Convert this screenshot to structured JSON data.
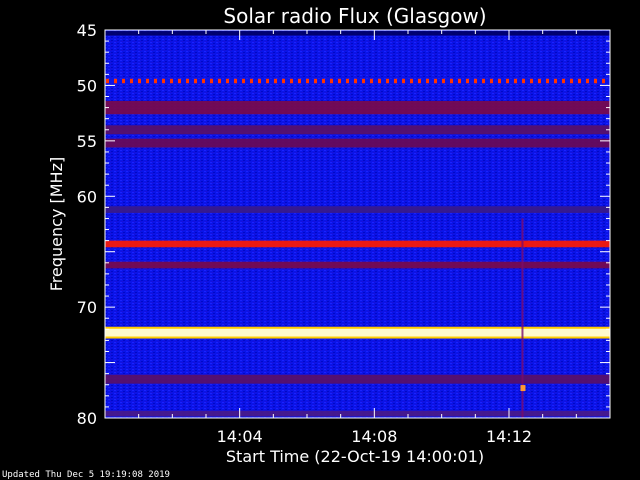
{
  "chart_data": {
    "type": "heatmap",
    "title": "Solar radio Flux (Glasgow)",
    "xlabel": "Start Time (22-Oct-19 14:00:01)",
    "ylabel": "Frequency [MHz]",
    "x_range_minutes": [
      0,
      15
    ],
    "x_ticks": [
      {
        "label": "14:04",
        "minute": 4
      },
      {
        "label": "14:08",
        "minute": 8
      },
      {
        "label": "14:12",
        "minute": 12
      }
    ],
    "y_range_mhz": [
      45,
      80
    ],
    "y_inverted": true,
    "y_ticks": [
      {
        "label": "45",
        "mhz": 45
      },
      {
        "label": "50",
        "mhz": 50
      },
      {
        "label": "55",
        "mhz": 55
      },
      {
        "label": "60",
        "mhz": 60
      },
      {
        "label": "70",
        "mhz": 70
      },
      {
        "label": "80",
        "mhz": 80
      }
    ],
    "colormap": [
      "#0000ff",
      "#8b0000",
      "#ff0000",
      "#ffff00",
      "#ffffff"
    ],
    "background_intensity": "low (blue)",
    "bands": [
      {
        "mhz": 45.3,
        "width_mhz": 0.4,
        "color": "#000066"
      },
      {
        "mhz": 49.6,
        "width_mhz": 0.4,
        "color": "#ff3300",
        "pattern": "dotted"
      },
      {
        "mhz": 52.0,
        "width_mhz": 1.2,
        "color": "#7a0a4a"
      },
      {
        "mhz": 54.0,
        "width_mhz": 0.8,
        "color": "#5a1066"
      },
      {
        "mhz": 55.2,
        "width_mhz": 0.8,
        "color": "#6a0a55"
      },
      {
        "mhz": 61.2,
        "width_mhz": 0.6,
        "color": "#3a1a88"
      },
      {
        "mhz": 64.3,
        "width_mhz": 0.6,
        "color": "#ff1a00"
      },
      {
        "mhz": 66.2,
        "width_mhz": 0.6,
        "color": "#7a0a4a"
      },
      {
        "mhz": 72.3,
        "width_mhz": 0.7,
        "color": "#ffffdd",
        "halo": "#ffcc00"
      },
      {
        "mhz": 76.5,
        "width_mhz": 0.8,
        "color": "#5a1066"
      },
      {
        "mhz": 79.6,
        "width_mhz": 0.5,
        "color": "#4a1a88"
      }
    ],
    "burst": {
      "minute": 12.4,
      "mhz_from": 62.0,
      "mhz_to": 80.0,
      "spot_mhz": 77.3,
      "spot_color": "#ff9933"
    }
  },
  "footer": "Updated Thu Dec  5 19:19:08 2019"
}
